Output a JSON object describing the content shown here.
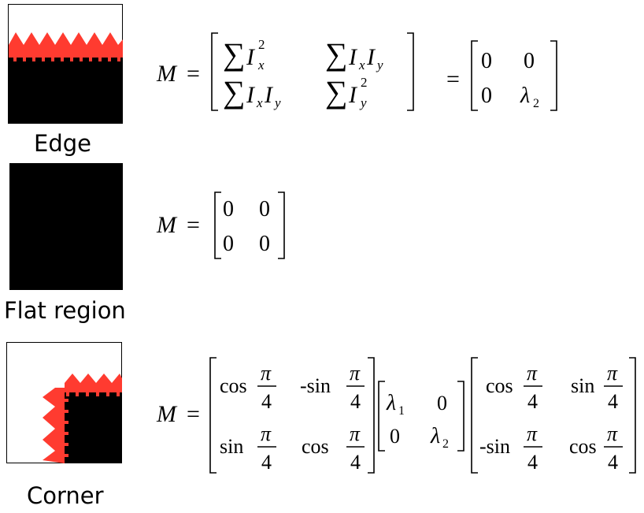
{
  "rows": [
    {
      "id": "edge",
      "caption": "Edge",
      "equation": {
        "lhs": "M",
        "eq": "=",
        "sum": "∑",
        "I": "I",
        "sub_x": "x",
        "sub_y": "y",
        "sup_2": "2",
        "eq2": "=",
        "rhs": [
          [
            "0",
            "0"
          ],
          [
            "0",
            "λ"
          ]
        ],
        "lambda_sub": "2"
      }
    },
    {
      "id": "flat",
      "caption": "Flat region",
      "equation": {
        "lhs": "M",
        "eq": "=",
        "matrix": [
          [
            "0",
            "0"
          ],
          [
            "0",
            "0"
          ]
        ]
      }
    },
    {
      "id": "corner",
      "caption": "Corner",
      "equation": {
        "lhs": "M",
        "eq": "=",
        "cos": "cos",
        "sin": "sin",
        "neg_sin": "-sin",
        "pi": "π",
        "four": "4",
        "lambda": "λ",
        "lambda_sub_1": "1",
        "lambda_sub_2": "2",
        "zero": "0"
      }
    }
  ],
  "colors": {
    "red": "#ff3b30",
    "black": "#000000",
    "border": "#000000"
  }
}
